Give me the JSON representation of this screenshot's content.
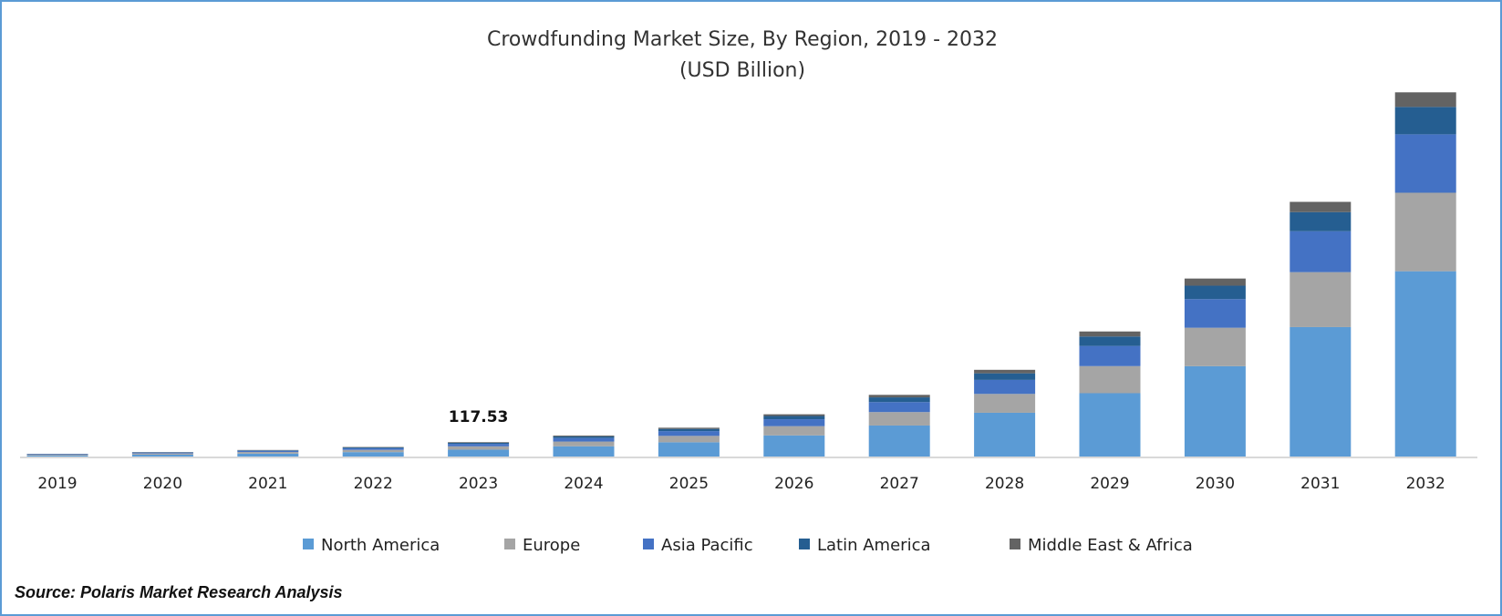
{
  "chart_data": {
    "type": "bar",
    "stacked": true,
    "title": "Crowdfunding Market Size, By Region, 2019 - 2032",
    "subtitle": "(USD Billion)",
    "xlabel": "",
    "ylabel": "",
    "ylim": [
      0,
      2900
    ],
    "grid": false,
    "legend_position": "bottom",
    "categories": [
      "2019",
      "2020",
      "2021",
      "2022",
      "2023",
      "2024",
      "2025",
      "2026",
      "2027",
      "2028",
      "2029",
      "2030",
      "2031",
      "2032"
    ],
    "series": [
      {
        "name": "North America",
        "color": "#5b9bd5",
        "values": [
          14.3,
          21.4,
          29.1,
          40.8,
          59.9,
          85.7,
          116.3,
          168.8,
          244.8,
          342.7,
          492.7,
          699.7,
          999.6,
          1428
        ]
      },
      {
        "name": "Europe",
        "color": "#a5a5a5",
        "values": [
          6.0,
          9.0,
          12.3,
          17.2,
          25.3,
          36.1,
          49.0,
          71.2,
          103.2,
          144.5,
          207.7,
          295.0,
          421.4,
          602
        ]
      },
      {
        "name": "Asia Pacific",
        "color": "#4472c4",
        "values": [
          4.5,
          6.7,
          9.1,
          12.8,
          18.8,
          26.9,
          36.5,
          53.0,
          76.8,
          107.5,
          154.6,
          219.5,
          313.6,
          448
        ]
      },
      {
        "name": "Latin America",
        "color": "#255e91",
        "values": [
          2.1,
          3.2,
          4.3,
          6.0,
          8.8,
          12.6,
          17.1,
          24.8,
          36.0,
          50.4,
          72.5,
          102.9,
          147.0,
          210
        ]
      },
      {
        "name": "Middle East & Africa",
        "color": "#636363",
        "values": [
          1.1,
          1.7,
          2.3,
          3.2,
          4.7,
          6.7,
          9.1,
          13.2,
          19.2,
          26.9,
          38.6,
          54.9,
          78.4,
          112
        ]
      }
    ],
    "annotations": [
      {
        "category": "2023",
        "text": "117.53"
      }
    ]
  },
  "source": "Source: Polaris Market Research Analysis",
  "colors": {
    "border": "#5b9bd5",
    "axis": "#d9d9d9"
  }
}
